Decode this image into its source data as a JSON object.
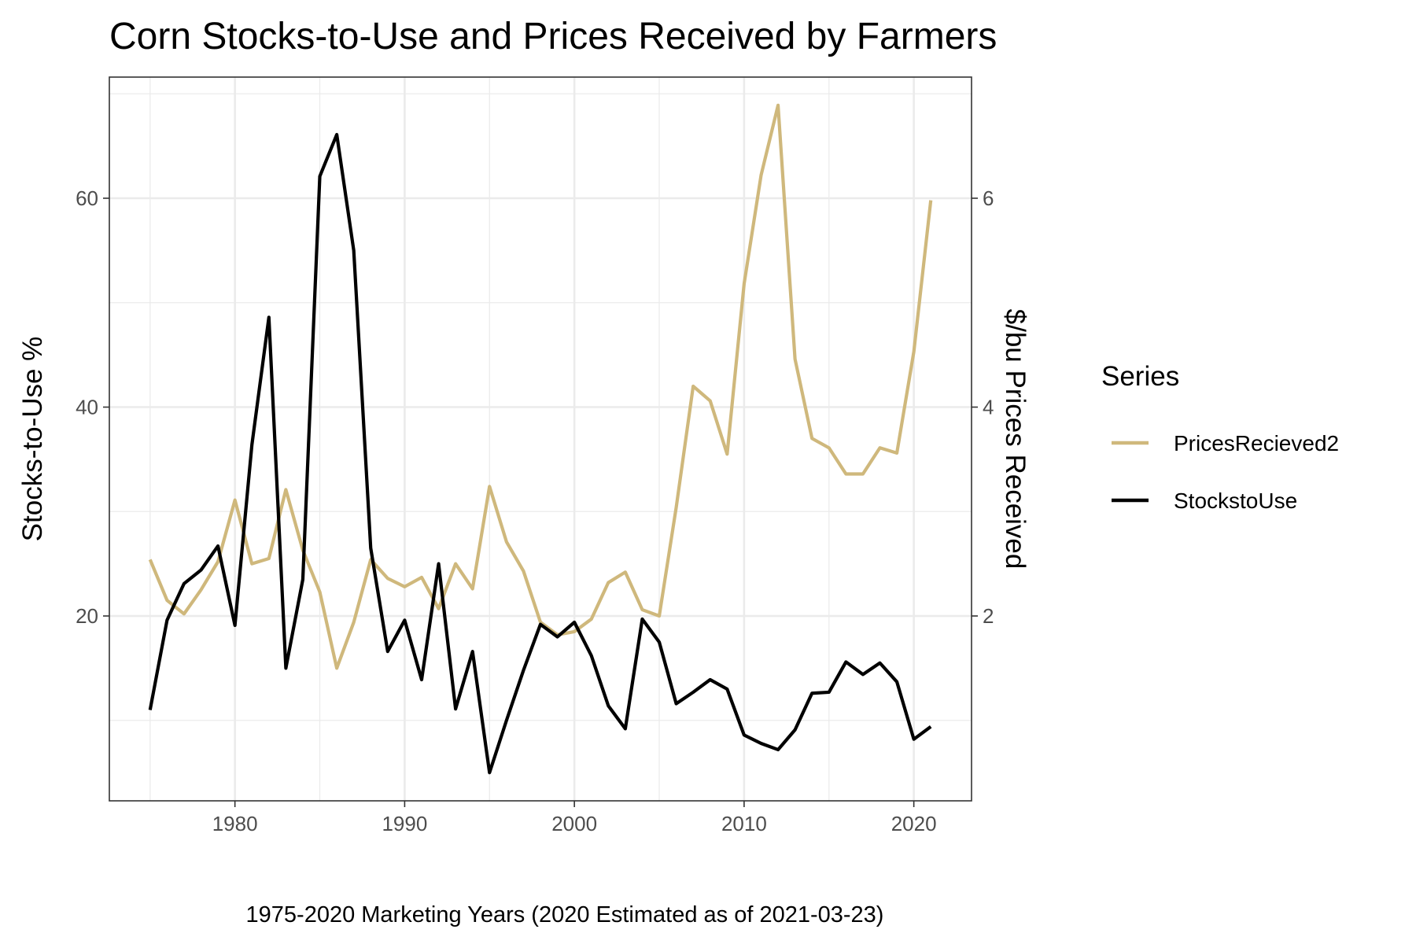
{
  "chart_data": {
    "type": "line",
    "title": "Corn Stocks-to-Use and Prices Received by Farmers",
    "caption": "1975-2020 Marketing Years (2020 Estimated as of 2021-03-23)",
    "xlabel": "",
    "ylabel": "Stocks-to-Use %",
    "y2label": "$/bu Prices Received",
    "xlim": [
      1972.6,
      2023.4
    ],
    "ylim": [
      2.3,
      71.6
    ],
    "y2lim": [
      0.23,
      7.16
    ],
    "x_ticks": [
      1980,
      1990,
      2000,
      2010,
      2020
    ],
    "y_ticks": [
      20,
      40,
      60
    ],
    "y2_ticks": [
      2,
      4,
      6
    ],
    "grid": true,
    "legend": {
      "title": "Series",
      "position": "right"
    },
    "x": [
      1975,
      1976,
      1977,
      1978,
      1979,
      1980,
      1981,
      1982,
      1983,
      1984,
      1985,
      1986,
      1987,
      1988,
      1989,
      1990,
      1991,
      1992,
      1993,
      1994,
      1995,
      1996,
      1997,
      1998,
      1999,
      2000,
      2001,
      2002,
      2003,
      2004,
      2005,
      2006,
      2007,
      2008,
      2009,
      2010,
      2011,
      2012,
      2013,
      2014,
      2015,
      2016,
      2017,
      2018,
      2019,
      2020,
      2021
    ],
    "series": [
      {
        "name": "PricesRecieved2",
        "axis": "right",
        "color": "#CFB87C",
        "values": [
          2.54,
          2.15,
          2.02,
          2.25,
          2.52,
          3.11,
          2.5,
          2.55,
          3.21,
          2.63,
          2.23,
          1.5,
          1.94,
          2.54,
          2.36,
          2.28,
          2.37,
          2.07,
          2.5,
          2.26,
          3.24,
          2.71,
          2.43,
          1.94,
          1.82,
          1.85,
          1.97,
          2.32,
          2.42,
          2.06,
          2.0,
          3.04,
          4.2,
          4.06,
          3.55,
          5.18,
          6.22,
          6.89,
          4.46,
          3.7,
          3.61,
          3.36,
          3.36,
          3.61,
          3.56,
          4.53,
          5.98
        ]
      },
      {
        "name": "StockstoUse",
        "axis": "left",
        "color": "#000000",
        "values": [
          11.0,
          19.6,
          23.1,
          24.4,
          26.7,
          19.1,
          36.4,
          48.6,
          15.0,
          23.5,
          62.1,
          66.1,
          55.0,
          26.5,
          16.6,
          19.6,
          13.9,
          25.0,
          11.1,
          16.6,
          5.0,
          10.0,
          14.8,
          19.2,
          18.0,
          19.4,
          16.2,
          11.4,
          9.2,
          19.7,
          17.5,
          11.6,
          12.7,
          13.9,
          13.0,
          8.6,
          7.8,
          7.2,
          9.1,
          12.6,
          12.7,
          15.6,
          14.4,
          15.5,
          13.7,
          8.2,
          9.4
        ]
      }
    ]
  }
}
